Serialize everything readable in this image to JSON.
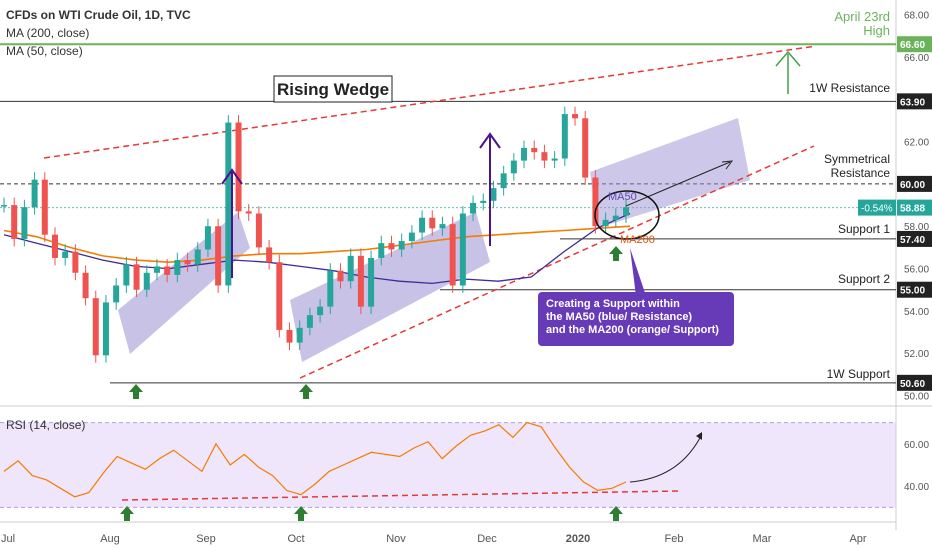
{
  "header": {
    "title": "CFDs on WTI Crude Oil, 1D, TVC",
    "ma200_label": "MA (200, close)",
    "ma50_label": "MA (50, close)",
    "rsi_label": "RSI (14, close)"
  },
  "colors": {
    "bull": "#26a69a",
    "bear": "#ef5350",
    "ma50": "#3f2b96",
    "ma200": "#f57c00",
    "rsi": "#f57c00",
    "channel": "#9c8fd3",
    "wedge": "#e53935",
    "arrow_green": "#43a047",
    "arrow_purple": "#4a148c",
    "callout": "#673ab7",
    "resistance_green": "#6bb35a"
  },
  "annotations": {
    "rising_wedge": "Rising Wedge",
    "resistance_1w": "1W Resistance",
    "symmetrical_1": "Symmetrical",
    "symmetrical_2": "Resistance",
    "support_1": "Support 1",
    "support_2": "Support 2",
    "support_1w": "1W Support",
    "april_high_1": "April 23rd",
    "april_high_2": "High",
    "ma50_tag": "MA50",
    "ma200_tag": "MA200",
    "callout_1": "Creating a Support within",
    "callout_2": "the MA50 (blue/ Resistance)",
    "callout_3": "and the MA200 (orange/ Support)",
    "change_badge": "-0.54%"
  },
  "price_axis": {
    "labels": [
      "68.00",
      "66.00",
      "64.00",
      "62.00",
      "60.00",
      "58.00",
      "56.00",
      "54.00",
      "52.00",
      "50.00"
    ],
    "highlighted": [
      {
        "label": "66.60",
        "value": 66.6,
        "color": "#6bb35a"
      },
      {
        "label": "63.90",
        "value": 63.9,
        "color": "#222222"
      },
      {
        "label": "60.00",
        "value": 60.0,
        "color": "#222222"
      },
      {
        "label": "58.88",
        "value": 58.88,
        "color": "#26a69a"
      },
      {
        "label": "57.40",
        "value": 57.4,
        "color": "#222222"
      },
      {
        "label": "55.00",
        "value": 55.0,
        "color": "#222222"
      },
      {
        "label": "50.60",
        "value": 50.6,
        "color": "#222222"
      }
    ]
  },
  "rsi_axis": {
    "labels": [
      "60.00",
      "40.00"
    ]
  },
  "time_axis": {
    "labels": [
      "Jul",
      "Aug",
      "Sep",
      "Oct",
      "Nov",
      "Dec",
      "2020",
      "Feb",
      "Mar",
      "Apr"
    ]
  },
  "chart_data": {
    "type": "candlestick",
    "title": "CFDs on WTI Crude Oil, 1D, TVC",
    "y_range": [
      49.6,
      68.5
    ],
    "rsi_range": [
      25,
      75
    ],
    "levels": {
      "resistance_1w": 63.9,
      "symmetrical_resistance": 60.0,
      "support_1": 57.4,
      "support_2": 55.0,
      "support_1w": 50.6,
      "april_23rd_high": 66.6
    },
    "close_path": [
      [
        "Jul",
        59.0
      ],
      [
        "Jul",
        57.4
      ],
      [
        "Jul",
        58.9
      ],
      [
        "Jul",
        60.2
      ],
      [
        "Jul",
        57.6
      ],
      [
        "Jul",
        56.5
      ],
      [
        "Jul",
        56.8
      ],
      [
        "Jul",
        55.8
      ],
      [
        "Aug",
        54.6
      ],
      [
        "Aug",
        51.9
      ],
      [
        "Aug",
        54.4
      ],
      [
        "Aug",
        55.2
      ],
      [
        "Aug",
        56.2
      ],
      [
        "Aug",
        55.0
      ],
      [
        "Aug",
        55.8
      ],
      [
        "Aug",
        56.1
      ],
      [
        "Aug",
        55.7
      ],
      [
        "Sep",
        56.4
      ],
      [
        "Sep",
        56.2
      ],
      [
        "Sep",
        56.9
      ],
      [
        "Sep",
        58.0
      ],
      [
        "Sep",
        55.2
      ],
      [
        "Sep",
        62.9
      ],
      [
        "Sep",
        58.7
      ],
      [
        "Sep",
        58.6
      ],
      [
        "Sep",
        57.0
      ],
      [
        "Oct",
        56.3
      ],
      [
        "Oct",
        53.1
      ],
      [
        "Oct",
        52.5
      ],
      [
        "Oct",
        53.2
      ],
      [
        "Oct",
        53.8
      ],
      [
        "Oct",
        54.2
      ],
      [
        "Oct",
        55.9
      ],
      [
        "Oct",
        55.4
      ],
      [
        "Oct",
        56.6
      ],
      [
        "Nov",
        54.2
      ],
      [
        "Nov",
        56.5
      ],
      [
        "Nov",
        57.2
      ],
      [
        "Nov",
        56.9
      ],
      [
        "Nov",
        57.3
      ],
      [
        "Nov",
        57.7
      ],
      [
        "Nov",
        58.4
      ],
      [
        "Nov",
        57.9
      ],
      [
        "Nov",
        58.1
      ],
      [
        "Dec",
        55.2
      ],
      [
        "Dec",
        58.6
      ],
      [
        "Dec",
        59.1
      ],
      [
        "Dec",
        59.2
      ],
      [
        "Dec",
        59.8
      ],
      [
        "Dec",
        60.5
      ],
      [
        "Dec",
        61.1
      ],
      [
        "Dec",
        61.7
      ],
      [
        "Dec",
        61.5
      ],
      [
        "Dec",
        61.1
      ],
      [
        "2020",
        61.2
      ],
      [
        "2020",
        63.3
      ],
      [
        "2020",
        63.1
      ],
      [
        "2020",
        60.3
      ],
      [
        "2020",
        58.0
      ],
      [
        "2020",
        58.3
      ],
      [
        "2020",
        58.5
      ],
      [
        "2020",
        58.9
      ]
    ],
    "ma50": [
      57.6,
      57.2,
      56.8,
      56.4,
      56.1,
      56.0,
      56.2,
      56.4,
      56.3,
      56.1,
      55.9,
      55.6,
      55.4,
      55.3,
      55.5,
      55.4,
      55.6,
      56.8,
      57.9,
      58.6
    ],
    "ma200": [
      57.8,
      57.5,
      57.0,
      56.6,
      56.4,
      56.3,
      56.4,
      56.6,
      56.7,
      56.7,
      56.8,
      56.9,
      57.1,
      57.3,
      57.5,
      57.6,
      57.7,
      57.8,
      57.9,
      58.0
    ],
    "rsi": [
      47,
      52,
      45,
      43,
      39,
      35,
      37,
      46,
      54,
      51,
      48,
      53,
      57,
      52,
      47,
      60,
      50,
      55,
      49,
      45,
      38,
      36,
      41,
      47,
      50,
      53,
      56,
      55,
      54,
      58,
      61,
      53,
      59,
      64,
      66,
      69,
      63,
      70,
      68,
      58,
      49,
      42,
      38,
      39,
      42
    ]
  }
}
